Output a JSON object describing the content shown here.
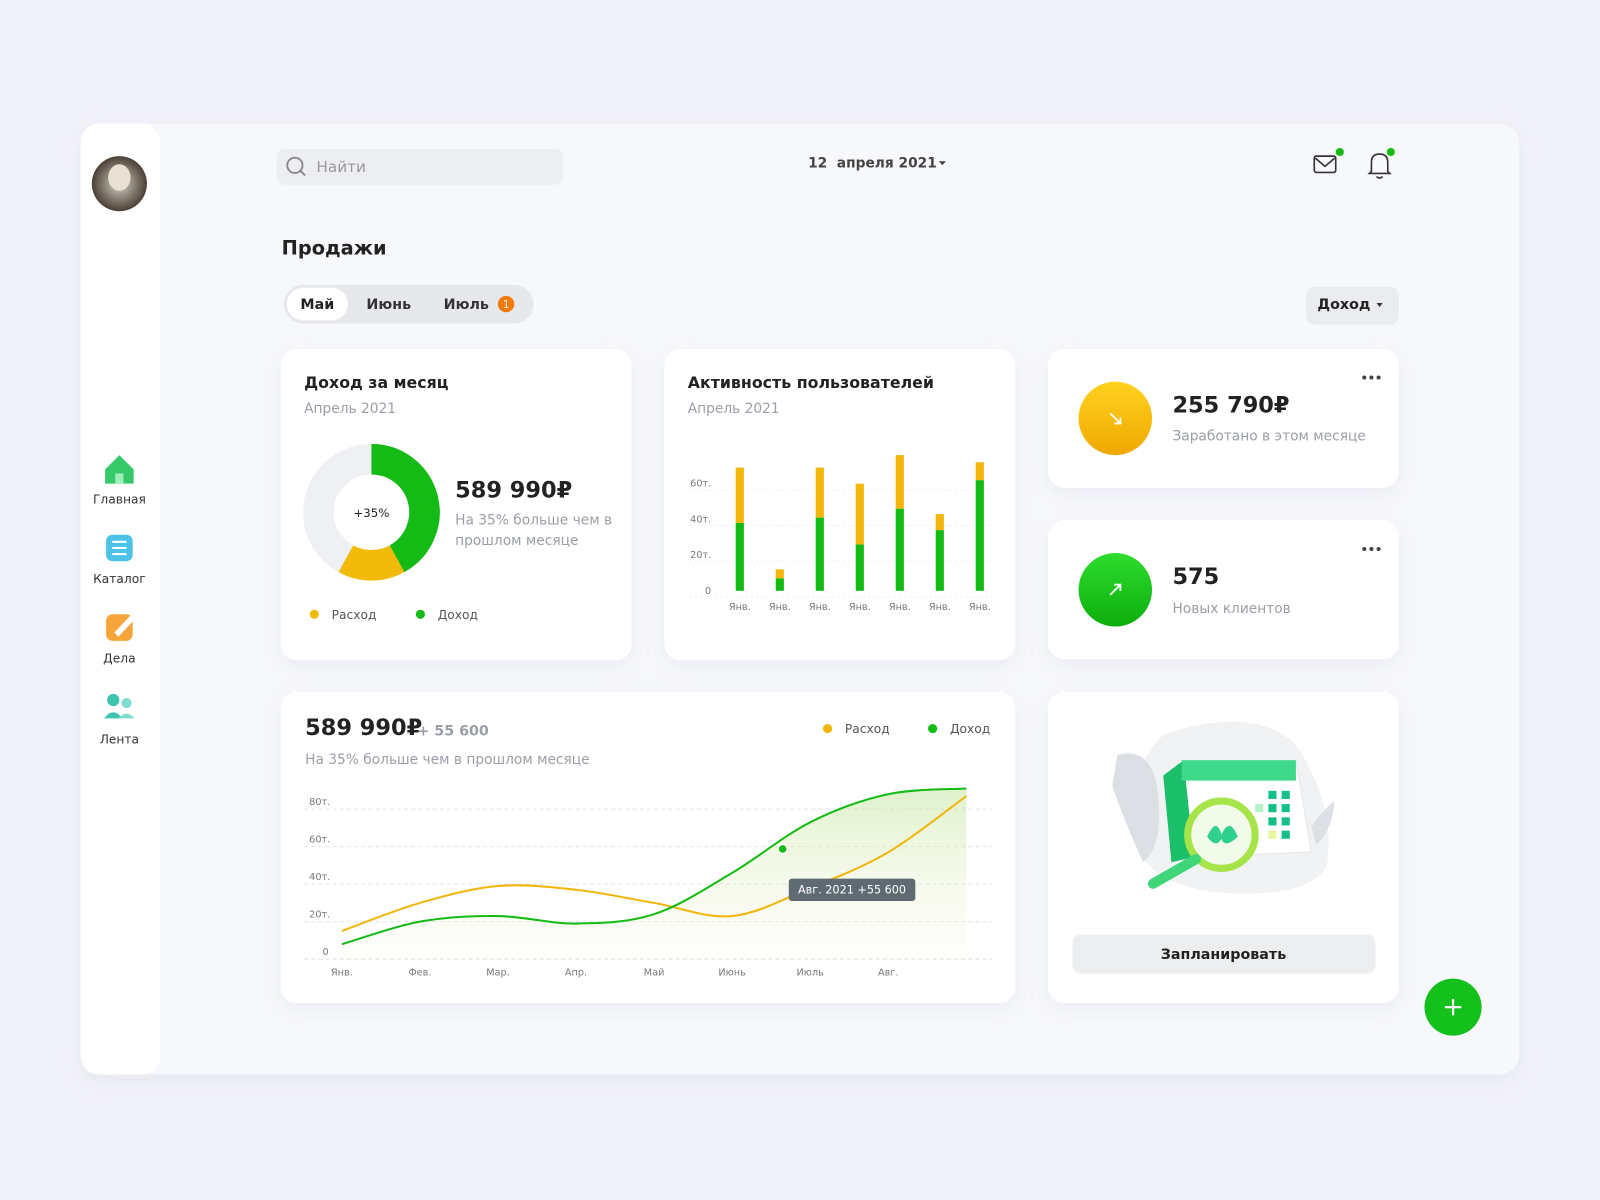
{
  "sidebar": {
    "nav": [
      "Главная",
      "Каталог",
      "Дела",
      "Лента"
    ]
  },
  "header": {
    "search_placeholder": "Найти",
    "date": "12  апреля 2021"
  },
  "page_title": "Продажи",
  "tabs": [
    {
      "label": "Май"
    },
    {
      "label": "Июнь"
    },
    {
      "label": "Июль",
      "badge": "1"
    }
  ],
  "filter": "Доход",
  "income_card": {
    "amount": "589 990₽",
    "note": "На 35% больше чем в прошлом месяце"
  },
  "stats": [
    {
      "value": "255 790₽",
      "label": "Заработано в этом месяце"
    },
    {
      "value": "575",
      "label": "Новых клиентов"
    }
  ],
  "plan_card": {
    "button": "Запланировать"
  },
  "chart_data": [
    {
      "type": "pie",
      "title": "Доход за месяц",
      "subtitle": "Апрель 2021",
      "center_label": "+35%",
      "categories": [
        "Расход",
        "Доход"
      ],
      "values": [
        16,
        42
      ],
      "colors": [
        "#f2bb0a",
        "#14bb14"
      ],
      "legend": true
    },
    {
      "type": "bar",
      "title": "Активность пользователей",
      "subtitle": "Апрель 2021",
      "stacked": true,
      "categories": [
        "Янв.",
        "Янв.",
        "Янв.",
        "Янв.",
        "Янв.",
        "Янв.",
        "Янв."
      ],
      "series": [
        {
          "color": "#14bb14",
          "values": [
            38,
            7,
            41,
            26,
            46,
            34,
            62
          ]
        },
        {
          "color": "#f2b70a",
          "values": [
            31,
            5,
            28,
            34,
            30,
            9,
            10
          ]
        }
      ],
      "ylim": [
        0,
        80
      ],
      "yticks": [
        0,
        {
          "value": 20,
          "label": "20т."
        },
        {
          "value": 40,
          "label": "40т."
        },
        {
          "value": 60,
          "label": "60т."
        }
      ]
    },
    {
      "type": "line",
      "headline": "589 990₽",
      "delta": "+ 55 600",
      "subtitle": "На 35% больше чем в прошлом месяце",
      "annotation": "Авг. 2021 +55 600",
      "categories": [
        "Янв.",
        "Фев.",
        "Мар.",
        "Апр.",
        "Май",
        "Июнь",
        "Июль",
        "Авг.",
        null
      ],
      "series": [
        {
          "name": "Расход",
          "color": "#f0b70a",
          "values": [
            15,
            30,
            39,
            37,
            30,
            23,
            38,
            57,
            87
          ]
        },
        {
          "name": "Доход",
          "color": "#14bb14",
          "values": [
            8,
            20,
            23,
            19,
            24,
            46,
            73,
            88,
            91
          ]
        }
      ],
      "ylim": [
        0,
        95
      ],
      "yticks": [
        0,
        {
          "value": 20,
          "label": "20т."
        },
        {
          "value": 40,
          "label": "40т."
        },
        {
          "value": 60,
          "label": "60т."
        },
        {
          "value": 80,
          "label": "80т."
        }
      ],
      "grid": true,
      "legend": "top-right"
    }
  ]
}
